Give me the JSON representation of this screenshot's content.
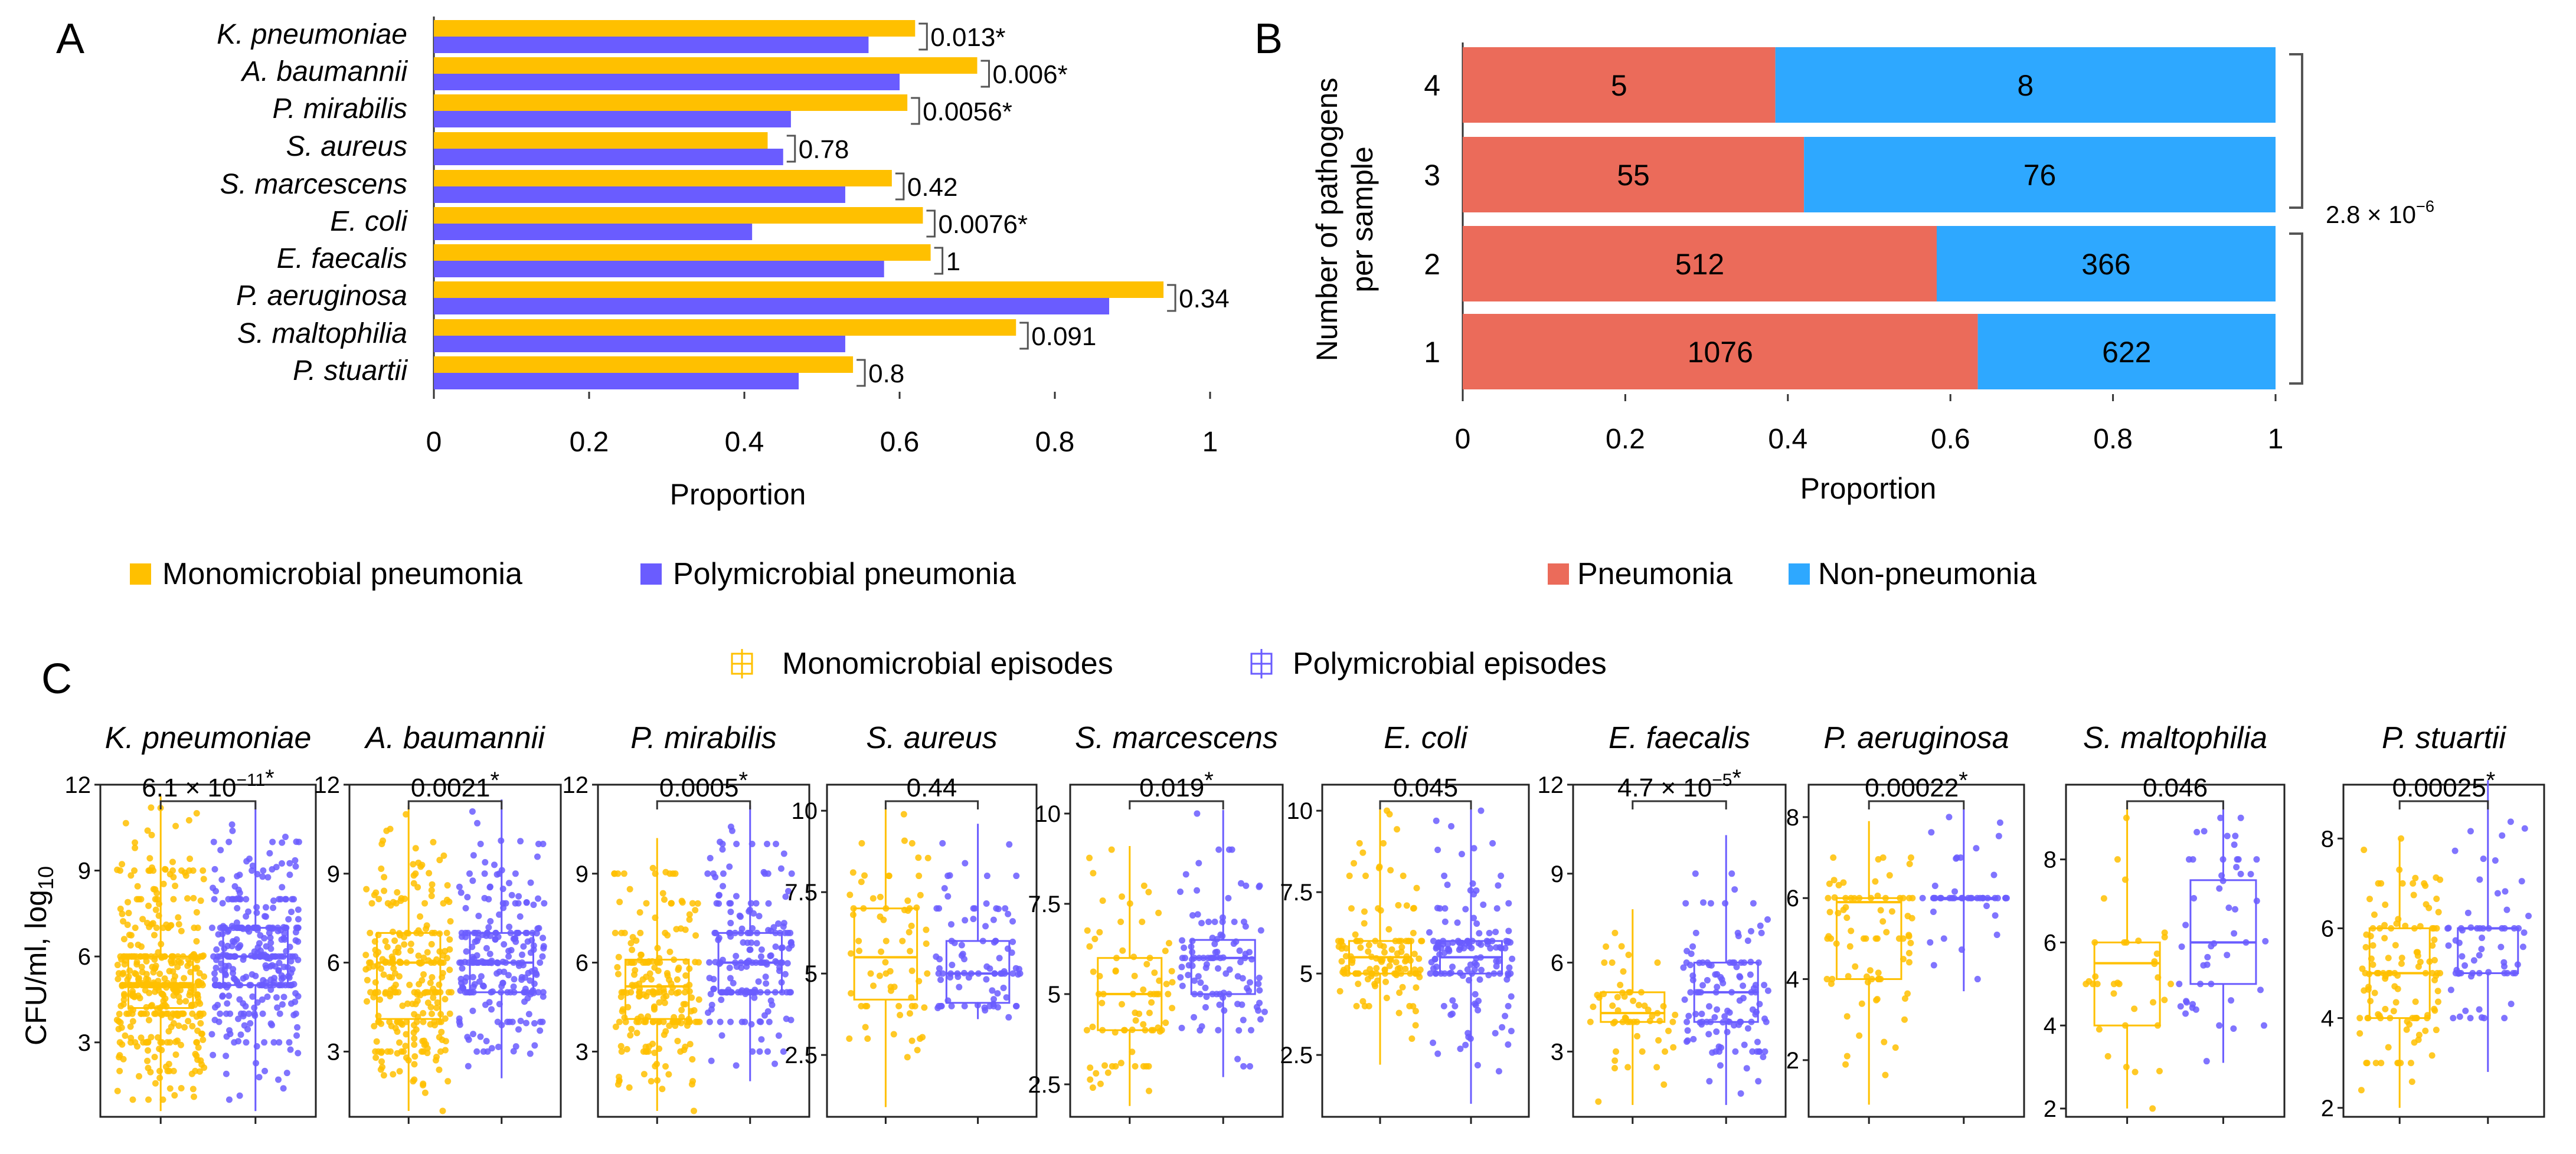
{
  "colors": {
    "mono": "#FFC000",
    "poly": "#6A5CFF",
    "pneumonia": "#EB6B5A",
    "non_pneumonia": "#2EA8FF",
    "axis": "#333333",
    "grid": "#e0e0e0"
  },
  "chart_data": [
    {
      "id": "A",
      "type": "bar",
      "orientation": "horizontal",
      "panel_label": "A",
      "categories": [
        "K. pneumoniae",
        "A. baumannii",
        "P. mirabilis",
        "S. aureus",
        "S. marcescens",
        "E. coli",
        "E. faecalis",
        "P. aeruginosa",
        "S. maltophilia",
        "P. stuartii"
      ],
      "series": [
        {
          "name": "Monomicrobial pneumonia",
          "color_key": "mono",
          "values": [
            0.62,
            0.7,
            0.61,
            0.43,
            0.59,
            0.63,
            0.64,
            0.94,
            0.75,
            0.54
          ]
        },
        {
          "name": "Polymicrobial pneumonia",
          "color_key": "poly",
          "values": [
            0.56,
            0.6,
            0.46,
            0.45,
            0.53,
            0.41,
            0.58,
            0.87,
            0.53,
            0.47
          ]
        }
      ],
      "pvalues": [
        "0.013*",
        "0.006*",
        "0.0056*",
        "0.78",
        "0.42",
        "0.0076*",
        "1",
        "0.34",
        "0.091",
        "0.8"
      ],
      "xlabel": "Proportion",
      "xlim": [
        0,
        1
      ],
      "xticks": [
        "0",
        "0.2",
        "0.4",
        "0.6",
        "0.8",
        "1"
      ],
      "legend": [
        "Monomicrobial pneumonia",
        "Polymicrobial pneumonia"
      ]
    },
    {
      "id": "B",
      "type": "bar",
      "orientation": "horizontal",
      "stacked": true,
      "panel_label": "B",
      "categories": [
        "4",
        "3",
        "2",
        "1"
      ],
      "series": [
        {
          "name": "Pneumonia",
          "color_key": "pneumonia",
          "counts": [
            5,
            55,
            512,
            1076
          ]
        },
        {
          "name": "Non-pneumonia",
          "color_key": "non_pneumonia",
          "counts": [
            8,
            76,
            366,
            622
          ]
        }
      ],
      "ylabel_lines": [
        "Number of pathogens",
        "per sample"
      ],
      "xlabel": "Proportion",
      "xlim": [
        0,
        1
      ],
      "xticks": [
        "0",
        "0.2",
        "0.4",
        "0.6",
        "0.8",
        "1"
      ],
      "pvalue_text": "2.8 × 10",
      "pvalue_exp": "−6",
      "legend": [
        "Pneumonia",
        "Non-pneumonia"
      ]
    },
    {
      "id": "C",
      "type": "box",
      "panel_label": "C",
      "ylabel": "CFU/ml, log",
      "ylabel_sub": "10",
      "legend": [
        "Monomicrobial episodes",
        "Polymicrobial episodes"
      ],
      "subplots": [
        {
          "title": "K. pneumoniae",
          "ylim": [
            0.4,
            12
          ],
          "yticks": [
            "3",
            "6",
            "9",
            "12"
          ],
          "pval": "6.1 × 10",
          "pexp": "−11",
          "star": true,
          "mono": {
            "q1": 4.2,
            "med": 5,
            "q3": 6,
            "wlo": 0.6,
            "whi": 11.6,
            "n": 420
          },
          "poly": {
            "q1": 5,
            "med": 6,
            "q3": 7,
            "wlo": 0.6,
            "whi": 11.4,
            "n": 330
          }
        },
        {
          "title": "A. baumannii",
          "ylim": [
            0.8,
            12
          ],
          "yticks": [
            "3",
            "6",
            "9",
            "12"
          ],
          "pval": "0.0021",
          "pexp": "",
          "star": true,
          "mono": {
            "q1": 4.1,
            "med": 6,
            "q3": 7,
            "wlo": 1,
            "whi": 11.3,
            "n": 260
          },
          "poly": {
            "q1": 5,
            "med": 6,
            "q3": 7,
            "wlo": 2.1,
            "whi": 11.5,
            "n": 230
          }
        },
        {
          "title": "P. mirabilis",
          "ylim": [
            0.8,
            12
          ],
          "yticks": [
            "3",
            "6",
            "9",
            "12"
          ],
          "pval": "0.0005",
          "pexp": "",
          "star": true,
          "mono": {
            "q1": 4.1,
            "med": 5.2,
            "q3": 6.1,
            "wlo": 1,
            "whi": 10.2,
            "n": 210
          },
          "poly": {
            "q1": 5,
            "med": 6,
            "q3": 7,
            "wlo": 2,
            "whi": 11.3,
            "n": 190
          }
        },
        {
          "title": "S. aureus",
          "ylim": [
            0.6,
            10.8
          ],
          "yticks": [
            "2.5",
            "5",
            "7.5",
            "10"
          ],
          "pval": "0.44",
          "pexp": "",
          "star": false,
          "mono": {
            "q1": 4.2,
            "med": 5.5,
            "q3": 7,
            "wlo": 0.9,
            "whi": 10.1,
            "n": 70
          },
          "poly": {
            "q1": 4.1,
            "med": 5,
            "q3": 6,
            "wlo": 3.6,
            "whi": 9.6,
            "n": 90
          }
        },
        {
          "title": "S. marcescens",
          "ylim": [
            1.6,
            10.8
          ],
          "yticks": [
            "2.5",
            "5",
            "7.5",
            "10"
          ],
          "pval": "0.019",
          "pexp": "",
          "star": true,
          "mono": {
            "q1": 4,
            "med": 5,
            "q3": 6,
            "wlo": 1.9,
            "whi": 9.1,
            "n": 80
          },
          "poly": {
            "q1": 5,
            "med": 6,
            "q3": 6.5,
            "wlo": 2.7,
            "whi": 10.1,
            "n": 110
          }
        },
        {
          "title": "E. coli",
          "ylim": [
            0.6,
            10.8
          ],
          "yticks": [
            "2.5",
            "5",
            "7.5",
            "10"
          ],
          "pval": "0.045",
          "pexp": "",
          "star": false,
          "mono": {
            "q1": 5,
            "med": 5.5,
            "q3": 6,
            "wlo": 2.2,
            "whi": 10.3,
            "n": 130
          },
          "poly": {
            "q1": 5,
            "med": 5.5,
            "q3": 6,
            "wlo": 1,
            "whi": 10.3,
            "n": 140
          }
        },
        {
          "title": "E. faecalis",
          "ylim": [
            0.8,
            12
          ],
          "yticks": [
            "3",
            "6",
            "9",
            "12"
          ],
          "pval": "4.7 × 10",
          "pexp": "−5",
          "star": true,
          "mono": {
            "q1": 4,
            "med": 4.3,
            "q3": 5,
            "wlo": 1.2,
            "whi": 7.8,
            "n": 55
          },
          "poly": {
            "q1": 4,
            "med": 5,
            "q3": 6,
            "wlo": 1.2,
            "whi": 10.3,
            "n": 120
          }
        },
        {
          "title": "P. aeruginosa",
          "ylim": [
            0.6,
            8.8
          ],
          "yticks": [
            "2",
            "4",
            "6",
            "8"
          ],
          "pval": "0.00022",
          "pexp": "",
          "star": true,
          "mono": {
            "q1": 4,
            "med": 5.9,
            "q3": 6,
            "wlo": 0.9,
            "whi": 7.9,
            "n": 80
          },
          "poly": {
            "q1": 6,
            "med": 6,
            "q3": 6,
            "wlo": 3.7,
            "whi": 8.2,
            "n": 45
          }
        },
        {
          "title": "S. maltophilia",
          "ylim": [
            1.8,
            9.8
          ],
          "yticks": [
            "2",
            "4",
            "6",
            "8"
          ],
          "pval": "0.046",
          "pexp": "",
          "star": false,
          "mono": {
            "q1": 4,
            "med": 5.5,
            "q3": 6,
            "wlo": 2,
            "whi": 9.4,
            "n": 35
          },
          "poly": {
            "q1": 5,
            "med": 6,
            "q3": 7.5,
            "wlo": 3.1,
            "whi": 9.4,
            "n": 50
          }
        },
        {
          "title": "P. stuartii",
          "ylim": [
            1.8,
            9.2
          ],
          "yticks": [
            "2",
            "4",
            "6",
            "8"
          ],
          "pval": "0.00025",
          "pexp": "",
          "star": true,
          "mono": {
            "q1": 4,
            "med": 5,
            "q3": 6,
            "wlo": 2,
            "whi": 8,
            "n": 120
          },
          "poly": {
            "q1": 5,
            "med": 6,
            "q3": 6,
            "wlo": 2.8,
            "whi": 9.3,
            "n": 65
          }
        }
      ]
    }
  ]
}
